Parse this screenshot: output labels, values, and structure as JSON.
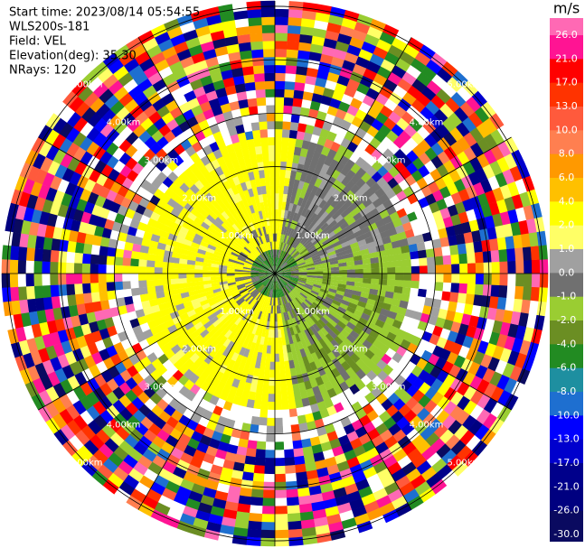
{
  "chart_data": {
    "type": "ppi",
    "info": [
      "Start time: 2023/08/14 05:54:55",
      "WLS200s-181",
      "Field: VEL",
      "Elevation(deg): 35.30",
      "NRays: 120"
    ],
    "range_rings": [
      {
        "value": 1,
        "label": "1.00km"
      },
      {
        "value": 2,
        "label": "2.00km"
      },
      {
        "value": 3,
        "label": "3.00km"
      },
      {
        "value": 4,
        "label": "4.00km"
      },
      {
        "value": 5,
        "label": "5.00km"
      }
    ],
    "rlim": [
      0,
      5.1
    ],
    "colorbar": {
      "unit": "m/s",
      "ticks": [
        {
          "value": 26,
          "label": "26.0"
        },
        {
          "value": 21,
          "label": "21.0"
        },
        {
          "value": 17,
          "label": "17.0"
        },
        {
          "value": 13,
          "label": "13.0"
        },
        {
          "value": 10,
          "label": "10.0"
        },
        {
          "value": 8,
          "label": "8.0"
        },
        {
          "value": 6,
          "label": "6.0"
        },
        {
          "value": 4,
          "label": "4.0"
        },
        {
          "value": 2,
          "label": "2.0"
        },
        {
          "value": 1,
          "label": "1.0"
        },
        {
          "value": 0,
          "label": "0.0"
        },
        {
          "value": -1,
          "label": "-1.0"
        },
        {
          "value": -2,
          "label": "-2.0"
        },
        {
          "value": -4,
          "label": "-4.0"
        },
        {
          "value": -6,
          "label": "-6.0"
        },
        {
          "value": -8,
          "label": "-8.0"
        },
        {
          "value": -10,
          "label": "-10.0"
        },
        {
          "value": -13,
          "label": "-13.0"
        },
        {
          "value": -17,
          "label": "-17.0"
        },
        {
          "value": -21,
          "label": "-21.0"
        },
        {
          "value": -26,
          "label": "-26.0"
        },
        {
          "value": -30,
          "label": "-30.0"
        }
      ],
      "colors": [
        "#ff69b4",
        "#ff1493",
        "#ff0000",
        "#ff3300",
        "#ff5a3c",
        "#ff7f50",
        "#ff9900",
        "#ffc000",
        "#ffff00",
        "#ffff66",
        "#a0a0a0",
        "#707070",
        "#9acd32",
        "#6b8e23",
        "#228b22",
        "#1e8fa0",
        "#1e6fd0",
        "#0000ff",
        "#0000cd",
        "#00008b",
        "#000080",
        "#0a0a60"
      ]
    }
  }
}
